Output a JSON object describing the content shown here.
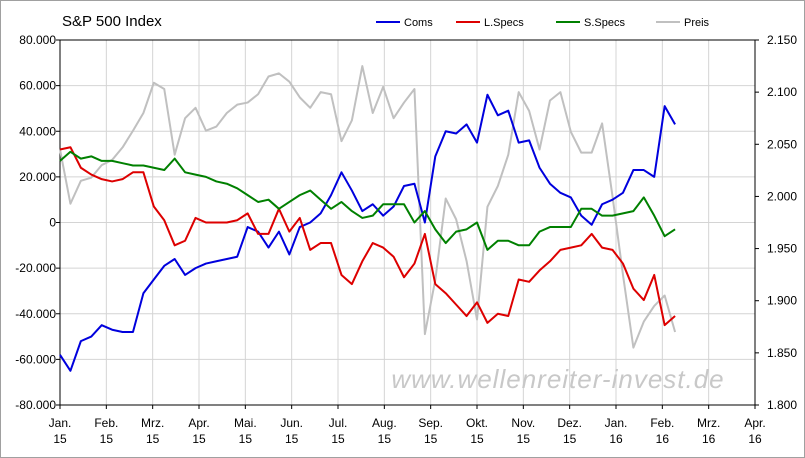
{
  "chart_data": {
    "type": "line",
    "title": "S&P 500 Index",
    "annotation": "www.wellenreiter-invest.de",
    "grid": true,
    "legend": "top",
    "x": [
      0,
      0.225,
      0.45,
      0.675,
      0.9,
      1.125,
      1.35,
      1.575,
      1.8,
      2.025,
      2.25,
      2.475,
      2.7,
      2.925,
      3.15,
      3.375,
      3.6,
      3.825,
      4.05,
      4.275,
      4.5,
      4.725,
      4.95,
      5.175,
      5.4,
      5.625,
      5.85,
      6.075,
      6.3,
      6.525,
      6.75,
      6.975,
      7.2,
      7.425,
      7.65,
      7.875,
      8.1,
      8.325,
      8.55,
      8.775,
      9,
      9.225,
      9.45,
      9.675,
      9.9,
      10.125,
      10.35,
      10.575,
      10.8,
      11.025,
      11.25,
      11.475,
      11.7,
      11.925,
      12.15,
      12.375,
      12.6,
      12.825,
      13.05,
      13.275
    ],
    "xlim": [
      0,
      15
    ],
    "xticks": [
      {
        "value": 0,
        "label": "Jan. 15"
      },
      {
        "value": 1,
        "label": "Feb. 15"
      },
      {
        "value": 2,
        "label": "Mrz. 15"
      },
      {
        "value": 3,
        "label": "Apr. 15"
      },
      {
        "value": 4,
        "label": "Mai. 15"
      },
      {
        "value": 5,
        "label": "Jun. 15"
      },
      {
        "value": 6,
        "label": "Jul. 15"
      },
      {
        "value": 7,
        "label": "Aug. 15"
      },
      {
        "value": 8,
        "label": "Sep. 15"
      },
      {
        "value": 9,
        "label": "Okt. 15"
      },
      {
        "value": 10,
        "label": "Nov. 15"
      },
      {
        "value": 11,
        "label": "Dez. 15"
      },
      {
        "value": 12,
        "label": "Jan. 16"
      },
      {
        "value": 13,
        "label": "Feb. 16"
      },
      {
        "value": 14,
        "label": "Mrz. 16"
      },
      {
        "value": 15,
        "label": "Apr. 16"
      }
    ],
    "ylim": [
      -80000,
      80000
    ],
    "yticks": [
      {
        "value": -80000,
        "label": "-80.000"
      },
      {
        "value": -60000,
        "label": "-60.000"
      },
      {
        "value": -40000,
        "label": "-40.000"
      },
      {
        "value": -20000,
        "label": "-20.000"
      },
      0,
      {
        "value": 20000,
        "label": "20.000"
      },
      {
        "value": 40000,
        "label": "40.000"
      },
      {
        "value": 60000,
        "label": "60.000"
      },
      {
        "value": 80000,
        "label": "80.000"
      }
    ],
    "y2lim": [
      1800,
      2150
    ],
    "y2ticks": [
      {
        "value": 1800,
        "label": "1.800"
      },
      {
        "value": 1850,
        "label": "1.850"
      },
      {
        "value": 1900,
        "label": "1.900"
      },
      {
        "value": 1950,
        "label": "1.950"
      },
      {
        "value": 2000,
        "label": "2.000"
      },
      {
        "value": 2050,
        "label": "2.050"
      },
      {
        "value": 2100,
        "label": "2.100"
      },
      {
        "value": 2150,
        "label": "2.150"
      }
    ],
    "series": [
      {
        "name": "Preis",
        "color": "#c0c0c0",
        "axis": "y2",
        "values": [
          2045,
          1993,
          2015,
          2018,
          2030,
          2035,
          2047,
          2063,
          2080,
          2109,
          2103,
          2040,
          2075,
          2085,
          2063,
          2067,
          2080,
          2088,
          2090,
          2098,
          2115,
          2118,
          2110,
          2095,
          2085,
          2100,
          2098,
          2053,
          2073,
          2125,
          2080,
          2105,
          2075,
          2090,
          2103,
          1868,
          1920,
          1998,
          1978,
          1938,
          1882,
          1990,
          2010,
          2040,
          2100,
          2082,
          2045,
          2092,
          2100,
          2062,
          2042,
          2042,
          2070,
          2000,
          1925,
          1855,
          1880,
          1895,
          1905,
          1870
        ]
      },
      {
        "name": "Coms",
        "color": "#0000dd",
        "values": [
          -58000,
          -65000,
          -52000,
          -50000,
          -45000,
          -47000,
          -48000,
          -48000,
          -31000,
          -25000,
          -19000,
          -16000,
          -23000,
          -20000,
          -18000,
          -17000,
          -16000,
          -15000,
          -2000,
          -4000,
          -11000,
          -4000,
          -14000,
          -2000,
          0,
          4000,
          12000,
          22000,
          14000,
          5000,
          8000,
          3000,
          7000,
          16000,
          17000,
          0,
          29000,
          40000,
          39000,
          43000,
          35000,
          56000,
          47000,
          49000,
          35000,
          36000,
          24000,
          17000,
          13000,
          11000,
          3000,
          -1000,
          8000,
          10000,
          13000,
          23000,
          23000,
          20000,
          51000,
          43000
        ]
      },
      {
        "name": "L.Specs",
        "color": "#dd0000",
        "values": [
          32000,
          33000,
          24000,
          21000,
          19000,
          18000,
          19000,
          22000,
          22000,
          7000,
          1000,
          -10000,
          -8000,
          2000,
          0,
          0,
          0,
          1000,
          4000,
          -5000,
          -5000,
          6000,
          -4000,
          2000,
          -12000,
          -9000,
          -9000,
          -23000,
          -27000,
          -17000,
          -9000,
          -11000,
          -15000,
          -24000,
          -18000,
          -5000,
          -27000,
          -31000,
          -36000,
          -41000,
          -35000,
          -44000,
          -40000,
          -41000,
          -25000,
          -26000,
          -21000,
          -17000,
          -12000,
          -11000,
          -10000,
          -5000,
          -11000,
          -12000,
          -18000,
          -29000,
          -34000,
          -23000,
          -45000,
          -41000
        ]
      },
      {
        "name": "S.Specs",
        "color": "#008000",
        "values": [
          27000,
          31000,
          28000,
          29000,
          27000,
          27000,
          26000,
          25000,
          25000,
          24000,
          23000,
          28000,
          22000,
          21000,
          20000,
          18000,
          17000,
          15000,
          12000,
          9000,
          10000,
          6000,
          9000,
          12000,
          14000,
          10000,
          6000,
          9000,
          5000,
          2000,
          3000,
          8000,
          8000,
          8000,
          0,
          5000,
          -3000,
          -9000,
          -4000,
          -3000,
          0,
          -12000,
          -8000,
          -8000,
          -10000,
          -10000,
          -4000,
          -2000,
          -2000,
          -2000,
          6000,
          6000,
          3000,
          3000,
          4000,
          5000,
          11000,
          3000,
          -6000,
          -3000
        ]
      }
    ]
  }
}
